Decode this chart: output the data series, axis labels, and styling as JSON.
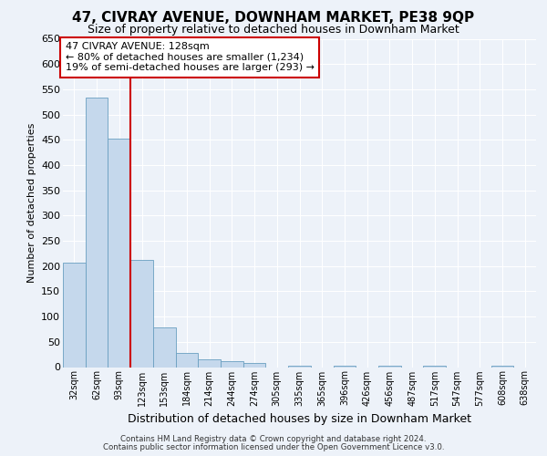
{
  "title": "47, CIVRAY AVENUE, DOWNHAM MARKET, PE38 9QP",
  "subtitle": "Size of property relative to detached houses in Downham Market",
  "xlabel": "Distribution of detached houses by size in Downham Market",
  "ylabel": "Number of detached properties",
  "bar_color": "#c5d8ec",
  "bar_edge_color": "#6a9fc0",
  "categories": [
    "32sqm",
    "62sqm",
    "93sqm",
    "123sqm",
    "153sqm",
    "184sqm",
    "214sqm",
    "244sqm",
    "274sqm",
    "305sqm",
    "335sqm",
    "365sqm",
    "396sqm",
    "426sqm",
    "456sqm",
    "487sqm",
    "517sqm",
    "547sqm",
    "577sqm",
    "608sqm",
    "638sqm"
  ],
  "values": [
    207,
    533,
    452,
    212,
    78,
    28,
    15,
    12,
    8,
    0,
    3,
    0,
    3,
    0,
    3,
    0,
    3,
    0,
    0,
    3,
    0
  ],
  "red_line_bin_index": 3,
  "annotation_line1": "47 CIVRAY AVENUE: 128sqm",
  "annotation_line2": "← 80% of detached houses are smaller (1,234)",
  "annotation_line3": "19% of semi-detached houses are larger (293) →",
  "annotation_box_color": "#ffffff",
  "annotation_box_edge_color": "#cc0000",
  "red_line_color": "#cc0000",
  "ylim": [
    0,
    650
  ],
  "yticks": [
    0,
    50,
    100,
    150,
    200,
    250,
    300,
    350,
    400,
    450,
    500,
    550,
    600,
    650
  ],
  "background_color": "#edf2f9",
  "footer_line1": "Contains HM Land Registry data © Crown copyright and database right 2024.",
  "footer_line2": "Contains public sector information licensed under the Open Government Licence v3.0.",
  "title_fontsize": 11,
  "subtitle_fontsize": 9,
  "grid_color": "#ffffff",
  "bar_width": 1.0
}
